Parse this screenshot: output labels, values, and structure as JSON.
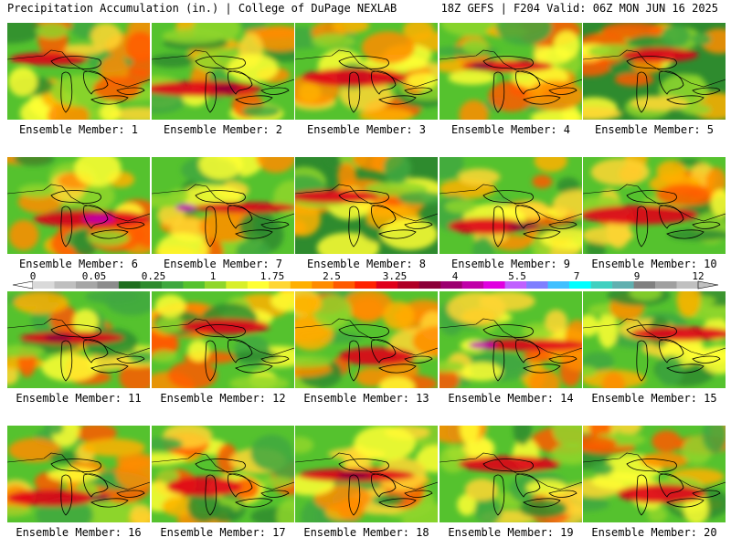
{
  "header": {
    "title": "Precipitation Accumulation (in.) | College of DuPage NEXLAB",
    "run_info": "18Z GEFS | F204 Valid: 06Z MON JUN 16 2025"
  },
  "legend": {
    "labels": [
      "0",
      "0.05",
      "0.25",
      "1",
      "1.75",
      "2.5",
      "3.25",
      "4",
      "5.5",
      "7",
      "9",
      "12"
    ],
    "colors": [
      "#d9d9d9",
      "#bfbfbf",
      "#a6a6a6",
      "#8c8c8c",
      "#1f6e1f",
      "#2e8b2e",
      "#3fa83f",
      "#55c22e",
      "#8fd62a",
      "#d8ef2a",
      "#ffff33",
      "#ffd633",
      "#ffb000",
      "#ff8c00",
      "#ff5a00",
      "#ff2200",
      "#e0001a",
      "#b00026",
      "#8b0038",
      "#9c0070",
      "#c000a8",
      "#e000e0",
      "#c060ff",
      "#7f7fff",
      "#40c0ff",
      "#00ffff",
      "#40d0c0",
      "#60b0b0",
      "#808080",
      "#a0a0a0",
      "#c0c0c0"
    ]
  },
  "panels": [
    {
      "caption": "Ensemble Member: 1"
    },
    {
      "caption": "Ensemble Member: 2"
    },
    {
      "caption": "Ensemble Member: 3"
    },
    {
      "caption": "Ensemble Member: 4"
    },
    {
      "caption": "Ensemble Member: 5"
    },
    {
      "caption": "Ensemble Member: 6"
    },
    {
      "caption": "Ensemble Member: 7"
    },
    {
      "caption": "Ensemble Member: 8"
    },
    {
      "caption": "Ensemble Member: 9"
    },
    {
      "caption": "Ensemble Member: 10"
    },
    {
      "caption": "Ensemble Member: 11"
    },
    {
      "caption": "Ensemble Member: 12"
    },
    {
      "caption": "Ensemble Member: 13"
    },
    {
      "caption": "Ensemble Member: 14"
    },
    {
      "caption": "Ensemble Member: 15"
    },
    {
      "caption": "Ensemble Member: 16"
    },
    {
      "caption": "Ensemble Member: 17"
    },
    {
      "caption": "Ensemble Member: 18"
    },
    {
      "caption": "Ensemble Member: 19"
    },
    {
      "caption": "Ensemble Member: 20"
    }
  ]
}
